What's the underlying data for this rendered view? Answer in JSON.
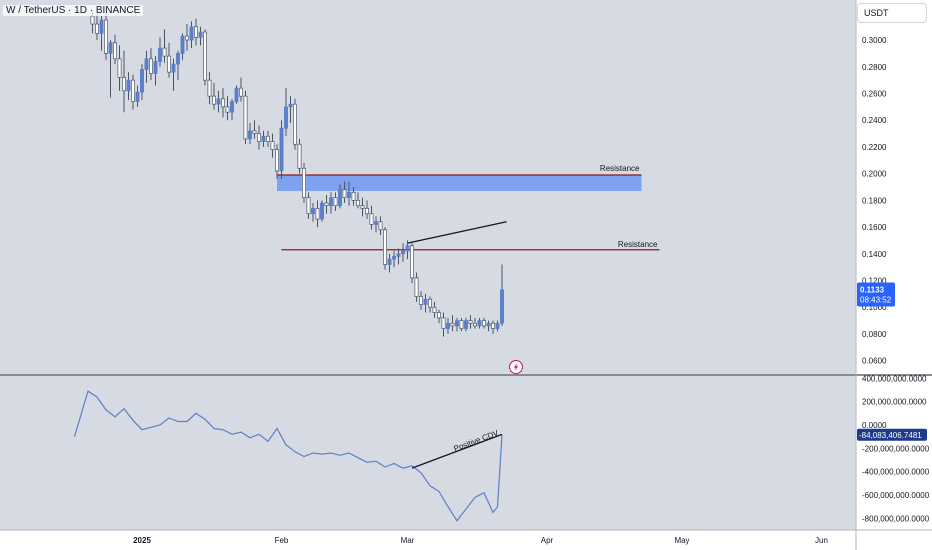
{
  "header": {
    "symbol_title": "W / TetherUS · 1D · BINANCE",
    "currency_button": "USDT"
  },
  "chart_data": [
    {
      "type": "candlestick",
      "panel": "price",
      "y_ticks": [
        "0.3000",
        "0.2800",
        "0.2600",
        "0.2400",
        "0.2200",
        "0.2000",
        "0.1800",
        "0.1600",
        "0.1400",
        "0.1200",
        "0.1000",
        "0.0800",
        "0.0600"
      ],
      "ylim": [
        0.05,
        0.33
      ],
      "x_ticks": [
        "2025",
        "Feb",
        "Mar",
        "Apr",
        "May",
        "Jun"
      ],
      "candles": [
        {
          "d": "2024-12-21",
          "o": 0.318,
          "h": 0.322,
          "l": 0.305,
          "c": 0.312
        },
        {
          "d": "2024-12-22",
          "o": 0.312,
          "h": 0.32,
          "l": 0.3,
          "c": 0.305
        },
        {
          "d": "2024-12-23",
          "o": 0.305,
          "h": 0.318,
          "l": 0.292,
          "c": 0.315
        },
        {
          "d": "2024-12-24",
          "o": 0.315,
          "h": 0.324,
          "l": 0.285,
          "c": 0.29
        },
        {
          "d": "2024-12-25",
          "o": 0.29,
          "h": 0.3,
          "l": 0.257,
          "c": 0.298
        },
        {
          "d": "2024-12-26",
          "o": 0.298,
          "h": 0.304,
          "l": 0.282,
          "c": 0.286
        },
        {
          "d": "2024-12-27",
          "o": 0.286,
          "h": 0.296,
          "l": 0.262,
          "c": 0.272
        },
        {
          "d": "2024-12-28",
          "o": 0.272,
          "h": 0.292,
          "l": 0.246,
          "c": 0.262
        },
        {
          "d": "2024-12-29",
          "o": 0.262,
          "h": 0.276,
          "l": 0.255,
          "c": 0.27
        },
        {
          "d": "2024-12-30",
          "o": 0.27,
          "h": 0.274,
          "l": 0.248,
          "c": 0.254
        },
        {
          "d": "2024-12-31",
          "o": 0.254,
          "h": 0.266,
          "l": 0.25,
          "c": 0.261
        },
        {
          "d": "2025-01-01",
          "o": 0.261,
          "h": 0.282,
          "l": 0.255,
          "c": 0.278
        },
        {
          "d": "2025-01-02",
          "o": 0.278,
          "h": 0.292,
          "l": 0.268,
          "c": 0.286
        },
        {
          "d": "2025-01-03",
          "o": 0.286,
          "h": 0.294,
          "l": 0.27,
          "c": 0.275
        },
        {
          "d": "2025-01-04",
          "o": 0.275,
          "h": 0.288,
          "l": 0.266,
          "c": 0.284
        },
        {
          "d": "2025-01-05",
          "o": 0.284,
          "h": 0.302,
          "l": 0.28,
          "c": 0.294
        },
        {
          "d": "2025-01-06",
          "o": 0.294,
          "h": 0.308,
          "l": 0.283,
          "c": 0.288
        },
        {
          "d": "2025-01-07",
          "o": 0.288,
          "h": 0.298,
          "l": 0.272,
          "c": 0.276
        },
        {
          "d": "2025-01-08",
          "o": 0.276,
          "h": 0.286,
          "l": 0.262,
          "c": 0.282
        },
        {
          "d": "2025-01-09",
          "o": 0.282,
          "h": 0.292,
          "l": 0.27,
          "c": 0.29
        },
        {
          "d": "2025-01-10",
          "o": 0.29,
          "h": 0.305,
          "l": 0.285,
          "c": 0.303
        },
        {
          "d": "2025-01-11",
          "o": 0.303,
          "h": 0.312,
          "l": 0.292,
          "c": 0.3
        },
        {
          "d": "2025-01-12",
          "o": 0.3,
          "h": 0.314,
          "l": 0.294,
          "c": 0.31
        },
        {
          "d": "2025-01-13",
          "o": 0.31,
          "h": 0.316,
          "l": 0.296,
          "c": 0.302
        },
        {
          "d": "2025-01-14",
          "o": 0.302,
          "h": 0.31,
          "l": 0.296,
          "c": 0.306
        },
        {
          "d": "2025-01-15",
          "o": 0.306,
          "h": 0.308,
          "l": 0.266,
          "c": 0.27
        },
        {
          "d": "2025-01-16",
          "o": 0.27,
          "h": 0.276,
          "l": 0.252,
          "c": 0.258
        },
        {
          "d": "2025-01-17",
          "o": 0.258,
          "h": 0.268,
          "l": 0.248,
          "c": 0.252
        },
        {
          "d": "2025-01-18",
          "o": 0.252,
          "h": 0.262,
          "l": 0.246,
          "c": 0.256
        },
        {
          "d": "2025-01-19",
          "o": 0.256,
          "h": 0.264,
          "l": 0.242,
          "c": 0.25
        },
        {
          "d": "2025-01-20",
          "o": 0.25,
          "h": 0.258,
          "l": 0.24,
          "c": 0.246
        },
        {
          "d": "2025-01-21",
          "o": 0.246,
          "h": 0.256,
          "l": 0.24,
          "c": 0.254
        },
        {
          "d": "2025-01-22",
          "o": 0.254,
          "h": 0.266,
          "l": 0.252,
          "c": 0.264
        },
        {
          "d": "2025-01-23",
          "o": 0.264,
          "h": 0.272,
          "l": 0.254,
          "c": 0.258
        },
        {
          "d": "2025-01-24",
          "o": 0.258,
          "h": 0.262,
          "l": 0.222,
          "c": 0.226
        },
        {
          "d": "2025-01-25",
          "o": 0.226,
          "h": 0.238,
          "l": 0.222,
          "c": 0.232
        },
        {
          "d": "2025-01-26",
          "o": 0.232,
          "h": 0.24,
          "l": 0.226,
          "c": 0.23
        },
        {
          "d": "2025-01-27",
          "o": 0.23,
          "h": 0.236,
          "l": 0.218,
          "c": 0.224
        },
        {
          "d": "2025-01-28",
          "o": 0.224,
          "h": 0.232,
          "l": 0.22,
          "c": 0.228
        },
        {
          "d": "2025-01-29",
          "o": 0.228,
          "h": 0.232,
          "l": 0.22,
          "c": 0.224
        },
        {
          "d": "2025-01-30",
          "o": 0.224,
          "h": 0.23,
          "l": 0.212,
          "c": 0.218
        },
        {
          "d": "2025-01-31",
          "o": 0.218,
          "h": 0.222,
          "l": 0.196,
          "c": 0.202
        },
        {
          "d": "2025-02-01",
          "o": 0.202,
          "h": 0.24,
          "l": 0.196,
          "c": 0.234
        },
        {
          "d": "2025-02-02",
          "o": 0.234,
          "h": 0.264,
          "l": 0.228,
          "c": 0.25
        },
        {
          "d": "2025-02-03",
          "o": 0.25,
          "h": 0.258,
          "l": 0.238,
          "c": 0.252
        },
        {
          "d": "2025-02-04",
          "o": 0.252,
          "h": 0.256,
          "l": 0.218,
          "c": 0.222
        },
        {
          "d": "2025-02-05",
          "o": 0.222,
          "h": 0.226,
          "l": 0.2,
          "c": 0.204
        },
        {
          "d": "2025-02-06",
          "o": 0.204,
          "h": 0.208,
          "l": 0.178,
          "c": 0.182
        },
        {
          "d": "2025-02-07",
          "o": 0.182,
          "h": 0.186,
          "l": 0.166,
          "c": 0.17
        },
        {
          "d": "2025-02-08",
          "o": 0.17,
          "h": 0.178,
          "l": 0.164,
          "c": 0.174
        },
        {
          "d": "2025-02-09",
          "o": 0.174,
          "h": 0.18,
          "l": 0.16,
          "c": 0.166
        },
        {
          "d": "2025-02-10",
          "o": 0.166,
          "h": 0.18,
          "l": 0.164,
          "c": 0.178
        },
        {
          "d": "2025-02-11",
          "o": 0.178,
          "h": 0.184,
          "l": 0.17,
          "c": 0.176
        },
        {
          "d": "2025-02-12",
          "o": 0.176,
          "h": 0.186,
          "l": 0.17,
          "c": 0.182
        },
        {
          "d": "2025-02-13",
          "o": 0.182,
          "h": 0.186,
          "l": 0.172,
          "c": 0.176
        },
        {
          "d": "2025-02-14",
          "o": 0.176,
          "h": 0.192,
          "l": 0.174,
          "c": 0.188
        },
        {
          "d": "2025-02-15",
          "o": 0.188,
          "h": 0.194,
          "l": 0.178,
          "c": 0.182
        },
        {
          "d": "2025-02-16",
          "o": 0.182,
          "h": 0.194,
          "l": 0.176,
          "c": 0.186
        },
        {
          "d": "2025-02-17",
          "o": 0.186,
          "h": 0.19,
          "l": 0.176,
          "c": 0.18
        },
        {
          "d": "2025-02-18",
          "o": 0.18,
          "h": 0.186,
          "l": 0.174,
          "c": 0.176
        },
        {
          "d": "2025-02-19",
          "o": 0.176,
          "h": 0.182,
          "l": 0.168,
          "c": 0.174
        },
        {
          "d": "2025-02-20",
          "o": 0.174,
          "h": 0.18,
          "l": 0.166,
          "c": 0.17
        },
        {
          "d": "2025-02-21",
          "o": 0.17,
          "h": 0.176,
          "l": 0.158,
          "c": 0.162
        },
        {
          "d": "2025-02-22",
          "o": 0.162,
          "h": 0.168,
          "l": 0.156,
          "c": 0.164
        },
        {
          "d": "2025-02-23",
          "o": 0.164,
          "h": 0.168,
          "l": 0.154,
          "c": 0.158
        },
        {
          "d": "2025-02-24",
          "o": 0.158,
          "h": 0.16,
          "l": 0.128,
          "c": 0.132
        },
        {
          "d": "2025-02-25",
          "o": 0.132,
          "h": 0.14,
          "l": 0.126,
          "c": 0.136
        },
        {
          "d": "2025-02-26",
          "o": 0.136,
          "h": 0.142,
          "l": 0.13,
          "c": 0.138
        },
        {
          "d": "2025-02-27",
          "o": 0.138,
          "h": 0.144,
          "l": 0.132,
          "c": 0.14
        },
        {
          "d": "2025-02-28",
          "o": 0.14,
          "h": 0.148,
          "l": 0.134,
          "c": 0.142
        },
        {
          "d": "2025-03-01",
          "o": 0.142,
          "h": 0.15,
          "l": 0.136,
          "c": 0.146
        },
        {
          "d": "2025-03-02",
          "o": 0.146,
          "h": 0.148,
          "l": 0.118,
          "c": 0.122
        },
        {
          "d": "2025-03-03",
          "o": 0.122,
          "h": 0.126,
          "l": 0.104,
          "c": 0.108
        },
        {
          "d": "2025-03-04",
          "o": 0.108,
          "h": 0.112,
          "l": 0.098,
          "c": 0.102
        },
        {
          "d": "2025-03-05",
          "o": 0.102,
          "h": 0.11,
          "l": 0.096,
          "c": 0.106
        },
        {
          "d": "2025-03-06",
          "o": 0.106,
          "h": 0.108,
          "l": 0.096,
          "c": 0.1
        },
        {
          "d": "2025-03-07",
          "o": 0.1,
          "h": 0.104,
          "l": 0.092,
          "c": 0.096
        },
        {
          "d": "2025-03-08",
          "o": 0.096,
          "h": 0.098,
          "l": 0.088,
          "c": 0.092
        },
        {
          "d": "2025-03-09",
          "o": 0.092,
          "h": 0.096,
          "l": 0.078,
          "c": 0.084
        },
        {
          "d": "2025-03-10",
          "o": 0.084,
          "h": 0.092,
          "l": 0.08,
          "c": 0.088
        },
        {
          "d": "2025-03-11",
          "o": 0.088,
          "h": 0.094,
          "l": 0.082,
          "c": 0.086
        },
        {
          "d": "2025-03-12",
          "o": 0.086,
          "h": 0.092,
          "l": 0.082,
          "c": 0.09
        },
        {
          "d": "2025-03-13",
          "o": 0.09,
          "h": 0.092,
          "l": 0.082,
          "c": 0.084
        },
        {
          "d": "2025-03-14",
          "o": 0.084,
          "h": 0.092,
          "l": 0.082,
          "c": 0.09
        },
        {
          "d": "2025-03-15",
          "o": 0.09,
          "h": 0.094,
          "l": 0.084,
          "c": 0.088
        },
        {
          "d": "2025-03-16",
          "o": 0.088,
          "h": 0.092,
          "l": 0.084,
          "c": 0.086
        },
        {
          "d": "2025-03-17",
          "o": 0.086,
          "h": 0.092,
          "l": 0.084,
          "c": 0.09
        },
        {
          "d": "2025-03-18",
          "o": 0.09,
          "h": 0.092,
          "l": 0.084,
          "c": 0.086
        },
        {
          "d": "2025-03-19",
          "o": 0.086,
          "h": 0.09,
          "l": 0.082,
          "c": 0.088
        },
        {
          "d": "2025-03-20",
          "o": 0.088,
          "h": 0.09,
          "l": 0.08,
          "c": 0.084
        },
        {
          "d": "2025-03-21",
          "o": 0.084,
          "h": 0.09,
          "l": 0.082,
          "c": 0.088
        },
        {
          "d": "2025-03-22",
          "o": 0.088,
          "h": 0.132,
          "l": 0.086,
          "c": 0.113
        }
      ],
      "zones": [
        {
          "label": "Resistance",
          "low": 0.187,
          "high": 0.199,
          "line": 0.199,
          "from": "2025-01-31",
          "to": "2025-04-22",
          "color": "#5b8def"
        }
      ],
      "levels": [
        {
          "label": "Resistance",
          "value": 0.143,
          "from": "2025-02-01",
          "to": "2025-04-26",
          "color": "#8b1a1a"
        }
      ],
      "trendline": {
        "from": {
          "d": "2025-03-01",
          "v": 0.148
        },
        "to": {
          "d": "2025-03-23",
          "v": 0.164
        }
      },
      "last_price": {
        "value": "0.1133",
        "countdown": "08:43:52",
        "color": "#2962ff"
      }
    },
    {
      "type": "line",
      "panel": "indicator",
      "series": [
        {
          "color": "#5b7fc9",
          "x": [
            "2024-12-17",
            "2024-12-20",
            "2024-12-22",
            "2024-12-24",
            "2024-12-26",
            "2024-12-28",
            "2024-12-30",
            "2025-01-01",
            "2025-01-03",
            "2025-01-05",
            "2025-01-07",
            "2025-01-09",
            "2025-01-11",
            "2025-01-13",
            "2025-01-15",
            "2025-01-17",
            "2025-01-19",
            "2025-01-21",
            "2025-01-23",
            "2025-01-25",
            "2025-01-27",
            "2025-01-29",
            "2025-01-31",
            "2025-02-02",
            "2025-02-04",
            "2025-02-06",
            "2025-02-08",
            "2025-02-10",
            "2025-02-12",
            "2025-02-14",
            "2025-02-16",
            "2025-02-18",
            "2025-02-20",
            "2025-02-22",
            "2025-02-24",
            "2025-02-26",
            "2025-02-28",
            "2025-03-02",
            "2025-03-04",
            "2025-03-06",
            "2025-03-08",
            "2025-03-10",
            "2025-03-12",
            "2025-03-14",
            "2025-03-16",
            "2025-03-18",
            "2025-03-20",
            "2025-03-21",
            "2025-03-22"
          ],
          "values": [
            -100000000,
            290000000,
            240000000,
            130000000,
            70000000,
            140000000,
            40000000,
            -40000000,
            -20000000,
            0,
            60000000,
            30000000,
            30000000,
            100000000,
            50000000,
            -30000000,
            -40000000,
            -80000000,
            -60000000,
            -110000000,
            -80000000,
            -140000000,
            -30000000,
            -170000000,
            -230000000,
            -270000000,
            -240000000,
            -250000000,
            -240000000,
            -260000000,
            -240000000,
            -280000000,
            -320000000,
            -310000000,
            -360000000,
            -330000000,
            -370000000,
            -350000000,
            -410000000,
            -520000000,
            -570000000,
            -700000000,
            -820000000,
            -720000000,
            -620000000,
            -580000000,
            -750000000,
            -700000000,
            -84083406.7481
          ]
        }
      ],
      "y_ticks": [
        "400,000,000.0000",
        "200,000,000.0000",
        "0.0000",
        "-200,000,000.0000",
        "-400,000,000.0000",
        "-600,000,000.0000",
        "-800,000,000.0000"
      ],
      "ylim": [
        -900000000,
        420000000
      ],
      "trendline": {
        "from": {
          "d": "2025-03-02",
          "v": -370000000
        },
        "to": {
          "d": "2025-03-22",
          "v": -80000000
        },
        "label": "Positive CDV"
      },
      "last_value": {
        "value": "-84,083,406.7481",
        "color": "#1e3a8a"
      }
    }
  ],
  "icons": {
    "alert": "lightning-bolt-icon"
  },
  "colors": {
    "up": "#5b7fc9",
    "down": "#ffffff",
    "wick": "#4a5568",
    "resistance_line": "#8b1a1a",
    "zone_fill": "#7ea2f0"
  }
}
